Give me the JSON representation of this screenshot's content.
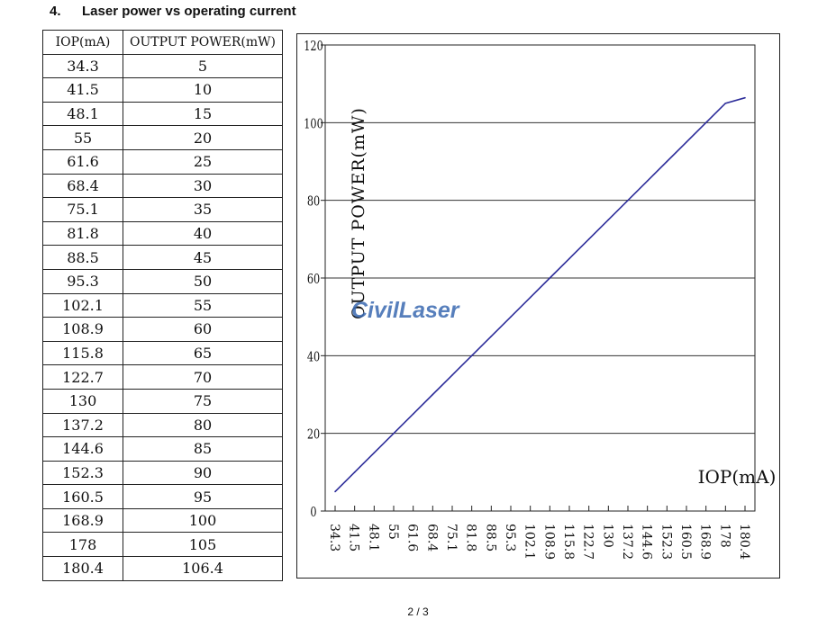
{
  "heading": {
    "number": "4.",
    "title": "Laser power vs operating current"
  },
  "table": {
    "headers": [
      "IOP(mA)",
      "OUTPUT POWER(mW)"
    ],
    "rows": [
      [
        "34.3",
        "5"
      ],
      [
        "41.5",
        "10"
      ],
      [
        "48.1",
        "15"
      ],
      [
        "55",
        "20"
      ],
      [
        "61.6",
        "25"
      ],
      [
        "68.4",
        "30"
      ],
      [
        "75.1",
        "35"
      ],
      [
        "81.8",
        "40"
      ],
      [
        "88.5",
        "45"
      ],
      [
        "95.3",
        "50"
      ],
      [
        "102.1",
        "55"
      ],
      [
        "108.9",
        "60"
      ],
      [
        "115.8",
        "65"
      ],
      [
        "122.7",
        "70"
      ],
      [
        "130",
        "75"
      ],
      [
        "137.2",
        "80"
      ],
      [
        "144.6",
        "85"
      ],
      [
        "152.3",
        "90"
      ],
      [
        "160.5",
        "95"
      ],
      [
        "168.9",
        "100"
      ],
      [
        "178",
        "105"
      ],
      [
        "180.4",
        "106.4"
      ]
    ]
  },
  "chart_data": {
    "type": "line",
    "ylabel": "OUTPUT POWER(mW)",
    "xlabel": "IOP(mA)",
    "ylim": [
      0,
      120
    ],
    "yticks": [
      0,
      20,
      40,
      60,
      80,
      100,
      120
    ],
    "grid": true,
    "categories": [
      "34.3",
      "41.5",
      "48.1",
      "55",
      "61.6",
      "68.4",
      "75.1",
      "81.8",
      "88.5",
      "95.3",
      "102.1",
      "108.9",
      "115.8",
      "122.7",
      "130",
      "137.2",
      "144.6",
      "152.3",
      "160.5",
      "168.9",
      "178",
      "180.4"
    ],
    "values": [
      5,
      10,
      15,
      20,
      25,
      30,
      35,
      40,
      45,
      50,
      55,
      60,
      65,
      70,
      75,
      80,
      85,
      90,
      95,
      100,
      105,
      106.4
    ],
    "line_color": "#2e2e9a",
    "watermark": "CivilLaser"
  },
  "footer": {
    "page": "2 / 3"
  }
}
